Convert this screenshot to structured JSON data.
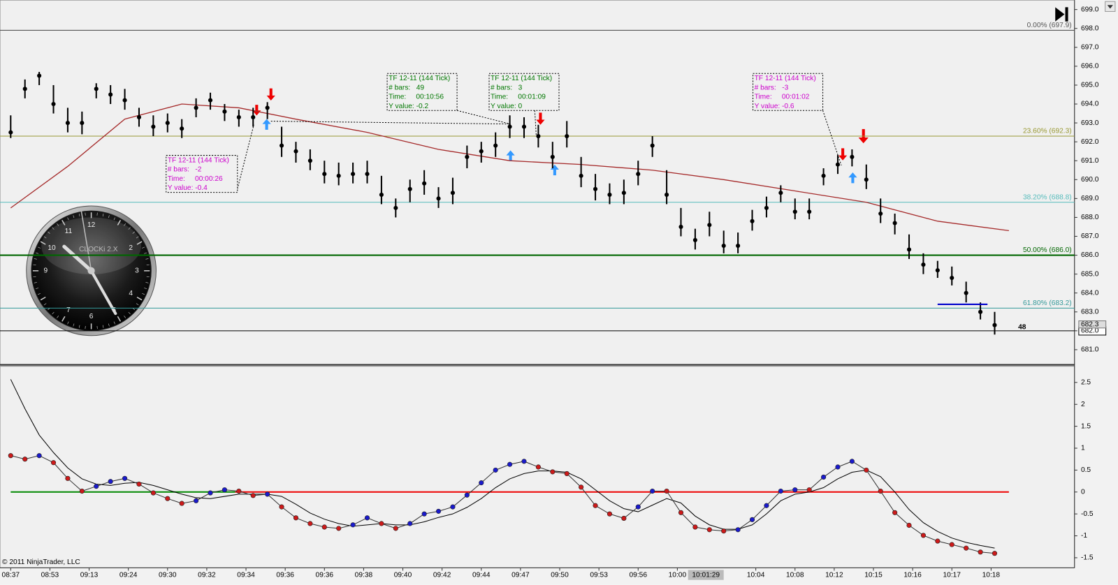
{
  "chart_data": [
    {
      "type": "ohlc",
      "xlim": [
        0,
        69
      ],
      "xticks": [
        {
          "value": 0,
          "label": "08:37"
        },
        {
          "value": 2.75,
          "label": "08:53"
        },
        {
          "value": 5.5,
          "label": "09:13"
        },
        {
          "value": 8.25,
          "label": "09:24"
        },
        {
          "value": 11,
          "label": "09:30"
        },
        {
          "value": 13.75,
          "label": "09:32"
        },
        {
          "value": 16.5,
          "label": "09:34"
        },
        {
          "value": 19.25,
          "label": "09:36"
        },
        {
          "value": 22,
          "label": "09:36"
        },
        {
          "value": 24.75,
          "label": "09:38"
        },
        {
          "value": 27.5,
          "label": "09:40"
        },
        {
          "value": 30.25,
          "label": "09:42"
        },
        {
          "value": 33,
          "label": "09:44"
        },
        {
          "value": 35.75,
          "label": "09:47"
        },
        {
          "value": 38.5,
          "label": "09:50"
        },
        {
          "value": 41.25,
          "label": "09:53"
        },
        {
          "value": 44,
          "label": "09:56"
        },
        {
          "value": 46.75,
          "label": "10:00"
        },
        {
          "value": 52.25,
          "label": "10:04"
        },
        {
          "value": 55,
          "label": "10:08"
        },
        {
          "value": 57.75,
          "label": "10:12"
        },
        {
          "value": 60.5,
          "label": "10:15"
        },
        {
          "value": 63.25,
          "label": "10:16"
        },
        {
          "value": 66,
          "label": "10:17"
        },
        {
          "value": 68.75,
          "label": "10:18"
        }
      ],
      "crosshair": {
        "value": 48.75,
        "label": "10:01:29"
      },
      "ylim": [
        680.2,
        699.5
      ],
      "yticks": [
        {
          "value": 681,
          "label": "681.0"
        },
        {
          "value": 682,
          "label": "682.0"
        },
        {
          "value": 683,
          "label": "683.0"
        },
        {
          "value": 684,
          "label": "684.0"
        },
        {
          "value": 685,
          "label": "685.0"
        },
        {
          "value": 686,
          "label": "686.0"
        },
        {
          "value": 687,
          "label": "687.0"
        },
        {
          "value": 688,
          "label": "688.0"
        },
        {
          "value": 689,
          "label": "689.0"
        },
        {
          "value": 690,
          "label": "690.0"
        },
        {
          "value": 691,
          "label": "691.0"
        },
        {
          "value": 692,
          "label": "692.0"
        },
        {
          "value": 693,
          "label": "693.0"
        },
        {
          "value": 694,
          "label": "694.0"
        },
        {
          "value": 695,
          "label": "695.0"
        },
        {
          "value": 696,
          "label": "696.0"
        },
        {
          "value": 697,
          "label": "697.0"
        },
        {
          "value": 698,
          "label": "698.0"
        },
        {
          "value": 699,
          "label": "699.0"
        }
      ],
      "color": "#000000",
      "high": [
        693.4,
        695.3,
        695.7,
        695,
        693.8,
        693.6,
        695.1,
        695,
        694.8,
        693.8,
        693.4,
        693.5,
        693.2,
        694.3,
        694.6,
        694,
        693.7,
        693.8,
        694.1,
        692.8,
        692,
        691.6,
        691,
        690.9,
        690.9,
        691,
        690.2,
        689,
        690,
        690.5,
        689.6,
        690.1,
        691.8,
        692,
        692.5,
        693.4,
        693.3,
        692.9,
        692,
        693.1,
        691.2,
        690.3,
        689.8,
        690,
        691,
        692.3,
        690.5,
        688.5,
        687.4,
        688.3,
        687.3,
        687.2,
        688.4,
        689.1,
        689.7,
        689,
        689,
        690.6,
        691.3,
        691.6,
        690.8,
        689,
        688.2,
        687.1,
        686.1,
        685.7,
        685.4,
        684.6,
        683.5,
        683
      ],
      "low": [
        692.2,
        694.3,
        695,
        693.5,
        692.5,
        692.4,
        694.3,
        694,
        693.7,
        692.8,
        692.3,
        692.5,
        692.2,
        693.3,
        693.7,
        693.1,
        692.8,
        692.8,
        693.2,
        691.2,
        690.9,
        690.5,
        689.8,
        689.7,
        689.8,
        689.8,
        688.7,
        688,
        688.8,
        689.2,
        688.5,
        688.7,
        690.6,
        690.9,
        691.2,
        692.2,
        692.2,
        691.7,
        690.6,
        691.7,
        689.6,
        688.9,
        688.7,
        688.7,
        689.7,
        691.2,
        688.7,
        687,
        686.3,
        687,
        686.1,
        686.1,
        687.3,
        688,
        688.8,
        687.9,
        687.9,
        689.7,
        690.3,
        690.7,
        689.5,
        687.7,
        687.1,
        685.8,
        685,
        684.8,
        684.4,
        683.5,
        682.6,
        681.8
      ],
      "close": [
        692.5,
        694.8,
        695.5,
        694,
        693,
        693,
        694.8,
        694.5,
        694.2,
        693.3,
        692.8,
        693,
        692.7,
        693.8,
        694.2,
        693.6,
        693.3,
        693.3,
        693.8,
        691.8,
        691.5,
        691,
        690.3,
        690.2,
        690.3,
        690.3,
        689.2,
        688.5,
        689.5,
        689.8,
        689,
        689.3,
        691.2,
        691.5,
        691.8,
        692.8,
        692.8,
        692.3,
        691.2,
        692.3,
        690.2,
        689.5,
        689.2,
        689.3,
        690.3,
        691.8,
        689.2,
        687.5,
        686.8,
        687.6,
        686.5,
        686.5,
        687.8,
        688.5,
        689.3,
        688.3,
        688.3,
        690.2,
        690.8,
        691.2,
        690,
        688.2,
        687.7,
        686.3,
        685.5,
        685.2,
        684.8,
        684,
        683,
        682.3
      ],
      "overlay": {
        "color": "#a52a2a",
        "x": [
          0,
          4,
          8,
          12,
          16,
          20,
          25,
          30,
          35,
          40,
          45,
          50,
          55,
          60,
          65,
          70
        ],
        "values": [
          688.5,
          690.7,
          693.2,
          694,
          693.8,
          693.2,
          692.5,
          691.6,
          691,
          690.8,
          690.5,
          690,
          689.4,
          688.8,
          687.8,
          687.3
        ]
      },
      "levels": [
        {
          "value": 697.9,
          "label": "0.00% (697.9)",
          "color": "#555555"
        },
        {
          "value": 692.3,
          "label": "23.60% (692.3)",
          "color": "#999933"
        },
        {
          "value": 688.8,
          "label": "38.20% (688.8)",
          "color": "#55bbbb"
        },
        {
          "value": 686.0,
          "label": "50.00% (686.0)",
          "color": "#006600"
        },
        {
          "value": 683.2,
          "label": "61.80% (683.2)",
          "color": "#339999"
        }
      ],
      "last_price": {
        "value": 682.0,
        "label": "682.0"
      },
      "prev_price": {
        "value": 682.3,
        "label": "682.3"
      },
      "target": {
        "value": 683.4,
        "from": 65,
        "to": 68.5,
        "color": "#0000cc"
      },
      "bar_counter": 48,
      "annotations": [
        {
          "color": "#cc00cc",
          "lines": [
            "TF 12-11 (144 Tick)",
            "# bars:   -2",
            "Time:     00:00:26",
            "Y value: -0.4"
          ]
        },
        {
          "color": "#007700",
          "lines": [
            "TF 12-11 (144 Tick)",
            "# bars:   49",
            "Time:     00:10:56",
            "Y value: -0.2"
          ]
        },
        {
          "color": "#007700",
          "lines": [
            "TF 12-11 (144 Tick)",
            "# bars:   3",
            "Time:     00:01:09",
            "Y value: 0"
          ]
        },
        {
          "color": "#cc00cc",
          "lines": [
            "TF 12-11 (144 Tick)",
            "# bars:   -3",
            "Time:     00:01:02",
            "Y value: -0.6"
          ]
        }
      ]
    },
    {
      "type": "line",
      "xlim": [
        0,
        69
      ],
      "ylim": [
        -1.73,
        2.87
      ],
      "yticks": [
        2.5,
        2,
        1.5,
        1,
        0.5,
        0,
        -0.5,
        -1,
        -1.5
      ],
      "zero_line": 0,
      "series": [
        {
          "rising_color": "#1a1acc",
          "falling_color": "#cc1a1a",
          "values": [
            0.83,
            0.75,
            0.83,
            0.67,
            0.31,
            0.02,
            0.13,
            0.24,
            0.31,
            0.18,
            -0.02,
            -0.15,
            -0.26,
            -0.2,
            -0.02,
            0.05,
            0.02,
            -0.08,
            -0.05,
            -0.34,
            -0.59,
            -0.72,
            -0.8,
            -0.83,
            -0.75,
            -0.59,
            -0.72,
            -0.83,
            -0.72,
            -0.5,
            -0.44,
            -0.34,
            -0.07,
            0.21,
            0.5,
            0.63,
            0.7,
            0.57,
            0.46,
            0.42,
            0.11,
            -0.31,
            -0.5,
            -0.6,
            -0.34,
            0.02,
            0.02,
            -0.47,
            -0.8,
            -0.86,
            -0.89,
            -0.86,
            -0.63,
            -0.31,
            0.02,
            0.05,
            0.05,
            0.34,
            0.57,
            0.7,
            0.5,
            0.02,
            -0.47,
            -0.76,
            -0.99,
            -1.12,
            -1.2,
            -1.28,
            -1.37,
            -1.4
          ]
        },
        {
          "color": "#000000",
          "values": [
            2.57,
            1.9,
            1.3,
            0.9,
            0.55,
            0.3,
            0.18,
            0.15,
            0.2,
            0.22,
            0.15,
            0.05,
            -0.05,
            -0.13,
            -0.15,
            -0.1,
            -0.05,
            -0.05,
            -0.05,
            -0.1,
            -0.28,
            -0.48,
            -0.62,
            -0.72,
            -0.78,
            -0.75,
            -0.72,
            -0.75,
            -0.75,
            -0.68,
            -0.58,
            -0.5,
            -0.35,
            -0.15,
            0.1,
            0.3,
            0.42,
            0.48,
            0.48,
            0.45,
            0.3,
            0.05,
            -0.2,
            -0.38,
            -0.45,
            -0.3,
            -0.15,
            -0.25,
            -0.55,
            -0.75,
            -0.85,
            -0.85,
            -0.75,
            -0.5,
            -0.2,
            -0.05,
            0,
            0.1,
            0.3,
            0.45,
            0.5,
            0.35,
            0,
            -0.4,
            -0.7,
            -0.9,
            -1.05,
            -1.15,
            -1.22,
            -1.28
          ]
        }
      ]
    }
  ],
  "clock": {
    "label": "CLOCKi 2.X",
    "numerals": [
      "12",
      "2",
      "3",
      "4",
      "5",
      "6",
      "7",
      "9",
      "10",
      "11"
    ]
  },
  "copyright": "© 2011 NinjaTrader, LLC"
}
